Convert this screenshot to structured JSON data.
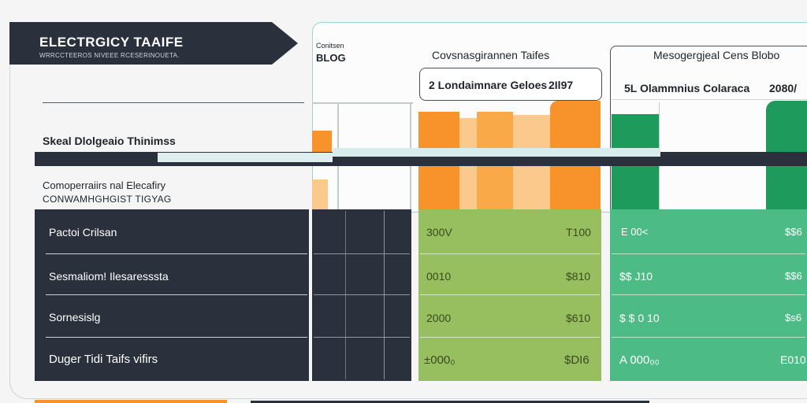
{
  "banner": {
    "title": "ELECTRGICY TAAIFE",
    "subtitle": "WRRCCTEEROS NIVEEE RCESERINOUETA."
  },
  "left": {
    "section_title": "Skeal Dlolgeaio Thinimss",
    "caption_line1": "Comoperraiirs nal Elecafiry",
    "caption_line2": "CONWAMHGHGIST TIGYAG",
    "rows": [
      "Pactoi Crilsan",
      "Sesmaliom! Ilesaresssta",
      "Sornesislg",
      "Duger Tidi Taifs vifirs"
    ]
  },
  "middle": {
    "small_label": "Conitsen",
    "label": "BLOG",
    "heading": "Covsnasgirannen Taifes",
    "col_header": "2 Londaimnare Geloes",
    "col_year": "2Il97",
    "values_left": [
      "300V",
      "0010",
      "2000",
      "±000₀"
    ],
    "values_right": [
      "T100",
      "$810",
      "$610",
      "$DI6"
    ]
  },
  "right": {
    "heading": "Mesogergjeal Cens Blobo",
    "col_header": "5L Olammnius Colaraca",
    "col_year": "2080/",
    "values_left": [
      "E  00<",
      "$$ J10",
      "$ $ 0 10",
      "A 000₀₀"
    ],
    "values_right": [
      "$$6",
      "$$6",
      "$s6",
      "E010"
    ]
  },
  "colors": {
    "dark": "#2a313c",
    "orange": "#f7932a",
    "light_green": "#97bf5f",
    "green": "#4dbb86",
    "dark_green": "#1d9a5c"
  }
}
